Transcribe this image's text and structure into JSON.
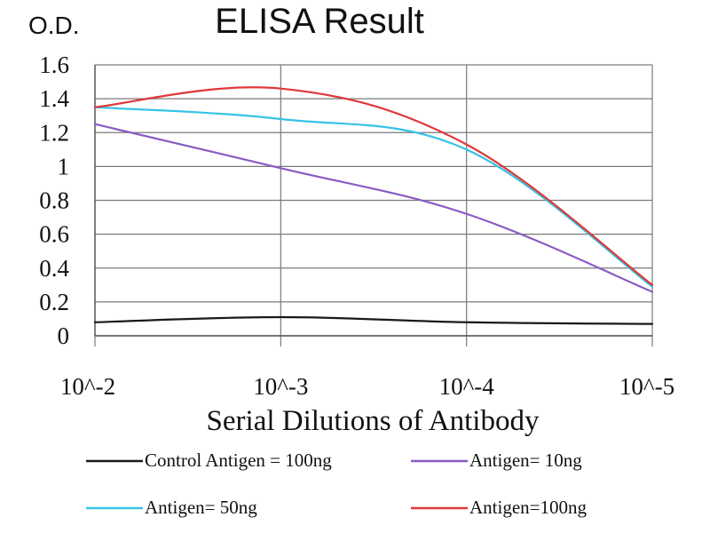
{
  "chart_data": {
    "type": "line",
    "title": "ELISA Result",
    "ylabel": "O.D.",
    "xlabel": "Serial Dilutions of Antibody",
    "categories": [
      "10^-2",
      "10^-3",
      "10^-4",
      "10^-5"
    ],
    "y_ticks": [
      "0",
      "0.2",
      "0.4",
      "0.6",
      "0.8",
      "1",
      "1.2",
      "1.4",
      "1.6"
    ],
    "ylim": [
      0,
      1.6
    ],
    "grid": true,
    "legend_position": "bottom",
    "series": [
      {
        "name": "Control Antigen = 100ng",
        "color": "#1a1a1a",
        "values": [
          0.08,
          0.11,
          0.08,
          0.07
        ]
      },
      {
        "name": "Antigen= 10ng",
        "color": "#8a5cc4",
        "values": [
          1.25,
          0.99,
          0.72,
          0.26
        ]
      },
      {
        "name": "Antigen= 50ng",
        "color": "#38c3e6",
        "values": [
          1.35,
          1.28,
          1.1,
          0.29
        ]
      },
      {
        "name": "Antigen=100ng",
        "color": "#e0383a",
        "values": [
          1.35,
          1.46,
          1.13,
          0.3
        ]
      }
    ]
  }
}
